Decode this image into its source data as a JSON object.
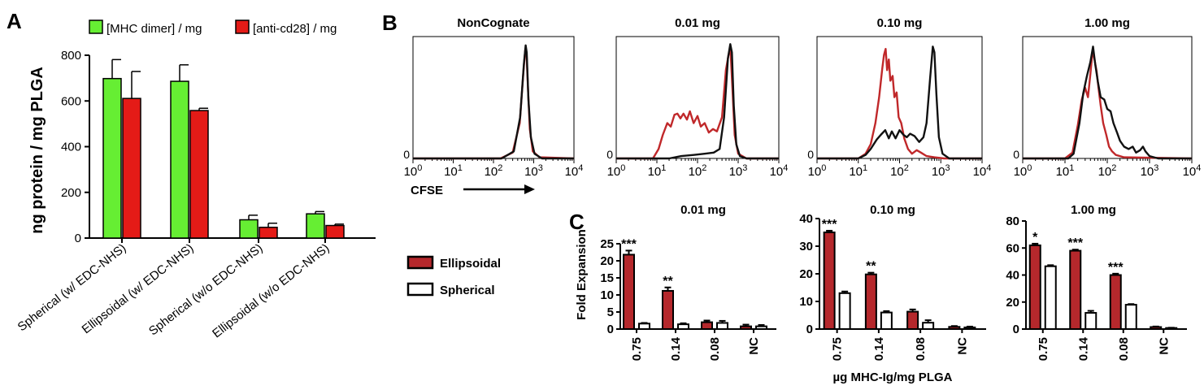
{
  "panel_letters": {
    "a": "A",
    "b": "B",
    "c": "C"
  },
  "chart_data": [
    {
      "id": "A",
      "type": "bar",
      "title": "",
      "ylabel": "ng protein / mg PLGA",
      "xlabel": "",
      "categories": [
        "Spherical (w/ EDC-NHS)",
        "Ellipsoidal (w/ EDC-NHS)",
        "Spherical (w/o EDC-NHS)",
        "Ellipsoidal (w/o EDC-NHS)"
      ],
      "series": [
        {
          "name": "[MHC dimer] / mg",
          "color": "#66ee33",
          "values": [
            698,
            686,
            80,
            106
          ],
          "errors": [
            83,
            72,
            20,
            10
          ]
        },
        {
          "name": "[anti-cd28] / mg",
          "color": "#e41b17",
          "values": [
            611,
            558,
            47,
            55
          ],
          "errors": [
            118,
            10,
            18,
            6
          ]
        }
      ],
      "ylim": [
        0,
        800
      ],
      "yticks": [
        0,
        200,
        400,
        600,
        800
      ],
      "legend": "top"
    },
    {
      "id": "B",
      "type": "line",
      "xlabel": "CFSE",
      "xscale": "log",
      "xlim": [
        1,
        10000
      ],
      "xtick_labels": [
        {
          "base": "10",
          "exp": "0"
        },
        {
          "base": "10",
          "exp": "1"
        },
        {
          "base": "10",
          "exp": "2"
        },
        {
          "base": "10",
          "exp": "3"
        },
        {
          "base": "10",
          "exp": "4"
        }
      ],
      "ytick_label": "0",
      "series_colors": {
        "black": "#111111",
        "red": "#c0282a"
      },
      "subplots": [
        {
          "title": "NonCognate",
          "red": [
            [
              1,
              0
            ],
            [
              150,
              0
            ],
            [
              300,
              0.05
            ],
            [
              450,
              0.3
            ],
            [
              560,
              0.75
            ],
            [
              620,
              0.93
            ],
            [
              660,
              0.9
            ],
            [
              720,
              0.6
            ],
            [
              800,
              0.25
            ],
            [
              950,
              0.06
            ],
            [
              1400,
              0.01
            ],
            [
              10000,
              0
            ]
          ],
          "black": [
            [
              1,
              0
            ],
            [
              160,
              0
            ],
            [
              320,
              0.06
            ],
            [
              460,
              0.35
            ],
            [
              570,
              0.8
            ],
            [
              630,
              0.96
            ],
            [
              670,
              0.9
            ],
            [
              740,
              0.5
            ],
            [
              850,
              0.18
            ],
            [
              1050,
              0.04
            ],
            [
              1600,
              0
            ],
            [
              10000,
              0
            ]
          ]
        },
        {
          "title": "0.01 mg",
          "red": [
            [
              1,
              0
            ],
            [
              8,
              0
            ],
            [
              11,
              0.08
            ],
            [
              14,
              0.2
            ],
            [
              18,
              0.3
            ],
            [
              22,
              0.27
            ],
            [
              27,
              0.37
            ],
            [
              32,
              0.38
            ],
            [
              38,
              0.34
            ],
            [
              45,
              0.38
            ],
            [
              55,
              0.33
            ],
            [
              65,
              0.4
            ],
            [
              80,
              0.3
            ],
            [
              100,
              0.36
            ],
            [
              120,
              0.27
            ],
            [
              150,
              0.3
            ],
            [
              190,
              0.22
            ],
            [
              240,
              0.25
            ],
            [
              300,
              0.23
            ],
            [
              400,
              0.35
            ],
            [
              500,
              0.75
            ],
            [
              580,
              0.88
            ],
            [
              650,
              0.92
            ],
            [
              720,
              0.6
            ],
            [
              820,
              0.2
            ],
            [
              1000,
              0.04
            ],
            [
              1600,
              0
            ],
            [
              10000,
              0
            ]
          ],
          "black": [
            [
              1,
              0
            ],
            [
              20,
              0
            ],
            [
              40,
              0.02
            ],
            [
              80,
              0.03
            ],
            [
              150,
              0.04
            ],
            [
              250,
              0.05
            ],
            [
              350,
              0.08
            ],
            [
              450,
              0.35
            ],
            [
              560,
              0.85
            ],
            [
              640,
              0.97
            ],
            [
              700,
              0.9
            ],
            [
              780,
              0.45
            ],
            [
              900,
              0.12
            ],
            [
              1100,
              0.02
            ],
            [
              1600,
              0
            ],
            [
              10000,
              0
            ]
          ]
        },
        {
          "title": "0.10 mg",
          "red": [
            [
              1,
              0
            ],
            [
              10,
              0
            ],
            [
              15,
              0.04
            ],
            [
              20,
              0.12
            ],
            [
              26,
              0.3
            ],
            [
              32,
              0.52
            ],
            [
              38,
              0.76
            ],
            [
              42,
              0.88
            ],
            [
              46,
              0.93
            ],
            [
              50,
              0.75
            ],
            [
              55,
              0.84
            ],
            [
              60,
              0.66
            ],
            [
              68,
              0.7
            ],
            [
              75,
              0.52
            ],
            [
              85,
              0.56
            ],
            [
              95,
              0.35
            ],
            [
              110,
              0.3
            ],
            [
              130,
              0.17
            ],
            [
              160,
              0.08
            ],
            [
              200,
              0.04
            ],
            [
              260,
              0.07
            ],
            [
              330,
              0.05
            ],
            [
              450,
              0.02
            ],
            [
              700,
              0.01
            ],
            [
              1200,
              0
            ],
            [
              10000,
              0
            ]
          ],
          "black": [
            [
              1,
              0
            ],
            [
              10,
              0
            ],
            [
              15,
              0.03
            ],
            [
              20,
              0.08
            ],
            [
              28,
              0.16
            ],
            [
              35,
              0.2
            ],
            [
              45,
              0.24
            ],
            [
              55,
              0.17
            ],
            [
              65,
              0.23
            ],
            [
              80,
              0.17
            ],
            [
              100,
              0.24
            ],
            [
              125,
              0.2
            ],
            [
              150,
              0.18
            ],
            [
              180,
              0.21
            ],
            [
              230,
              0.19
            ],
            [
              300,
              0.14
            ],
            [
              380,
              0.18
            ],
            [
              450,
              0.3
            ],
            [
              550,
              0.68
            ],
            [
              640,
              0.95
            ],
            [
              700,
              0.9
            ],
            [
              780,
              0.55
            ],
            [
              900,
              0.18
            ],
            [
              1100,
              0.04
            ],
            [
              1600,
              0
            ],
            [
              10000,
              0
            ]
          ]
        },
        {
          "title": "1.00 mg",
          "red": [
            [
              1,
              0
            ],
            [
              10,
              0
            ],
            [
              15,
              0.05
            ],
            [
              20,
              0.28
            ],
            [
              25,
              0.5
            ],
            [
              30,
              0.6
            ],
            [
              35,
              0.52
            ],
            [
              40,
              0.72
            ],
            [
              45,
              0.92
            ],
            [
              50,
              0.84
            ],
            [
              56,
              0.74
            ],
            [
              62,
              0.6
            ],
            [
              70,
              0.45
            ],
            [
              80,
              0.3
            ],
            [
              95,
              0.2
            ],
            [
              110,
              0.1
            ],
            [
              130,
              0.06
            ],
            [
              160,
              0.03
            ],
            [
              250,
              0.01
            ],
            [
              10000,
              0
            ]
          ],
          "black": [
            [
              1,
              0
            ],
            [
              12,
              0
            ],
            [
              16,
              0.04
            ],
            [
              22,
              0.3
            ],
            [
              27,
              0.55
            ],
            [
              33,
              0.7
            ],
            [
              40,
              0.82
            ],
            [
              46,
              0.95
            ],
            [
              52,
              0.8
            ],
            [
              60,
              0.65
            ],
            [
              70,
              0.52
            ],
            [
              85,
              0.5
            ],
            [
              100,
              0.42
            ],
            [
              120,
              0.4
            ],
            [
              140,
              0.3
            ],
            [
              170,
              0.22
            ],
            [
              200,
              0.15
            ],
            [
              250,
              0.1
            ],
            [
              320,
              0.08
            ],
            [
              400,
              0.1
            ],
            [
              480,
              0.05
            ],
            [
              600,
              0.07
            ],
            [
              700,
              0.1
            ],
            [
              800,
              0.06
            ],
            [
              1000,
              0.02
            ],
            [
              1600,
              0
            ],
            [
              10000,
              0
            ]
          ]
        }
      ]
    },
    {
      "id": "C",
      "type": "bar",
      "ylabel": "Fold Expansion",
      "xlabel": "µg MHC-Ig/mg PLGA",
      "categories": [
        "0.75",
        "0.14",
        "0.08",
        "NC"
      ],
      "legend": [
        {
          "name": "Ellipsoidal",
          "color": "#b5282c"
        },
        {
          "name": "Spherical",
          "color": "#ffffff"
        }
      ],
      "subplots": [
        {
          "title": "0.01 mg",
          "ylim": [
            0,
            25
          ],
          "yticks": [
            0,
            5,
            10,
            15,
            20,
            25
          ],
          "ellipsoidal": [
            21.8,
            11.2,
            2.0,
            0.8
          ],
          "ellipsoidal_err": [
            1.2,
            1.0,
            0.5,
            0.5
          ],
          "spherical": [
            1.6,
            1.4,
            1.8,
            0.8
          ],
          "spherical_err": [
            0.2,
            0.3,
            0.6,
            0.4
          ],
          "sig": [
            "***",
            "**",
            "",
            ""
          ]
        },
        {
          "title": "0.10 mg",
          "ylim": [
            0,
            40
          ],
          "yticks": [
            0,
            10,
            20,
            30,
            40
          ],
          "ellipsoidal": [
            35.0,
            19.8,
            6.3,
            0.8
          ],
          "ellipsoidal_err": [
            0.6,
            0.6,
            0.8,
            0.3
          ],
          "spherical": [
            13.0,
            6.0,
            2.3,
            0.6
          ],
          "spherical_err": [
            0.6,
            0.5,
            0.9,
            0.3
          ],
          "sig": [
            "***",
            "**",
            "",
            ""
          ]
        },
        {
          "title": "1.00 mg",
          "ylim": [
            0,
            80
          ],
          "yticks": [
            0,
            20,
            40,
            60,
            80
          ],
          "ellipsoidal": [
            62.0,
            58.0,
            40.0,
            1.5
          ],
          "ellipsoidal_err": [
            1.2,
            0.8,
            1.0,
            0.4
          ],
          "spherical": [
            46.5,
            12.0,
            18.0,
            0.8
          ],
          "spherical_err": [
            0.8,
            1.5,
            0.5,
            0.2
          ],
          "sig": [
            "*",
            "***",
            "***",
            ""
          ]
        }
      ]
    }
  ]
}
